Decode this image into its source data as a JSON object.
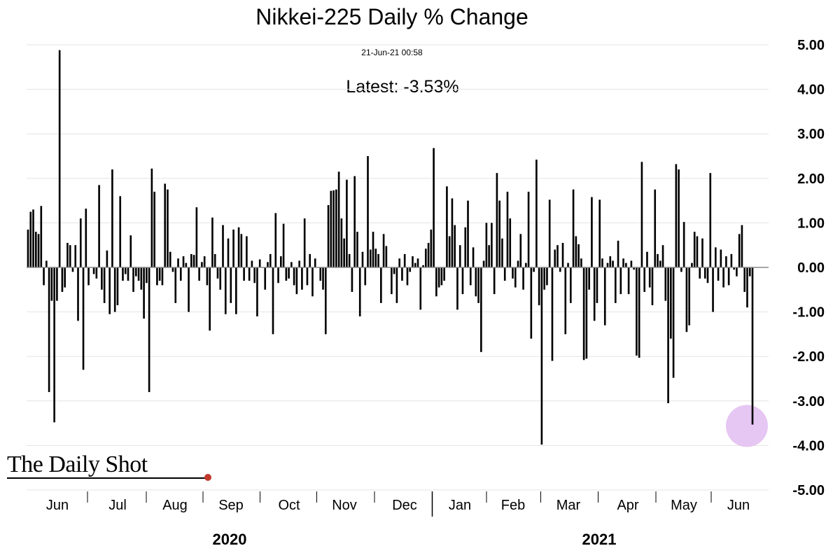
{
  "chart_data": {
    "type": "bar",
    "title": "Nikkei-225 Daily % Change",
    "timestamp": "21-Jun-21 00:58",
    "annotation": "Latest:  -3.53%",
    "source": "The Daily Shot",
    "ylim": [
      -5,
      5
    ],
    "yticks": [
      "5.00",
      "4.00",
      "3.00",
      "2.00",
      "1.00",
      "0.00",
      "-1.00",
      "-2.00",
      "-3.00",
      "-4.00",
      "-5.00"
    ],
    "months": [
      "Jun",
      "Jul",
      "Aug",
      "Sep",
      "Oct",
      "Nov",
      "Dec",
      "Jan",
      "Feb",
      "Mar",
      "Apr",
      "May",
      "Jun"
    ],
    "years": [
      "2020",
      "2021"
    ],
    "grid": true,
    "highlight_color": "#e6c6f2",
    "values": [
      0.85,
      1.25,
      1.3,
      0.8,
      0.75,
      1.38,
      -0.4,
      0.15,
      -2.8,
      -0.75,
      -3.48,
      -0.75,
      4.88,
      -0.55,
      -0.45,
      0.55,
      0.5,
      -0.1,
      0.5,
      -1.2,
      1.1,
      -2.3,
      1.32,
      -0.4,
      0.0,
      -0.15,
      -0.25,
      1.85,
      -0.5,
      -0.8,
      0.38,
      -1.05,
      2.2,
      -1.0,
      -0.85,
      1.6,
      -0.3,
      -0.15,
      -0.3,
      0.72,
      -0.55,
      -0.2,
      -0.3,
      -0.5,
      -1.15,
      -0.35,
      -2.8,
      2.22,
      1.7,
      -0.4,
      -0.3,
      -0.4,
      1.88,
      1.75,
      0.35,
      -0.1,
      -0.8,
      0.2,
      -0.3,
      0.25,
      0.1,
      -1.0,
      0.3,
      0.28,
      1.35,
      -0.3,
      0.12,
      0.25,
      -0.4,
      -1.42,
      1.12,
      0.3,
      -0.25,
      -0.5,
      0.95,
      -1.05,
      0.65,
      -0.8,
      0.85,
      -1.05,
      0.9,
      0.75,
      -0.3,
      0.7,
      -0.3,
      0.15,
      -0.35,
      -1.1,
      0.18,
      0.0,
      -0.5,
      0.12,
      0.3,
      -1.5,
      1.22,
      -0.35,
      0.25,
      0.98,
      -0.3,
      -0.25,
      0.12,
      -0.4,
      -0.6,
      0.15,
      -0.5,
      1.1,
      -0.4,
      0.3,
      -0.65,
      0.2,
      0.0,
      -0.3,
      -0.5,
      -1.5,
      1.4,
      1.72,
      1.73,
      1.75,
      2.15,
      1.1,
      0.65,
      1.97,
      0.3,
      -0.55,
      2.05,
      0.8,
      -1.1,
      0.35,
      -0.4,
      2.5,
      0.4,
      0.8,
      0.42,
      0.3,
      -0.8,
      0.75,
      0.48,
      0.0,
      -0.6,
      -0.15,
      -0.8,
      0.2,
      -0.3,
      0.3,
      -0.4,
      -0.1,
      0.25,
      0.1,
      0.2,
      -0.95,
      0.05,
      0.42,
      0.55,
      0.85,
      2.68,
      -0.65,
      -0.45,
      -0.4,
      -0.3,
      1.82,
      0.7,
      1.55,
      0.95,
      -0.95,
      0.5,
      -0.6,
      0.9,
      1.5,
      -0.4,
      0.45,
      -0.65,
      -0.8,
      -1.9,
      0.15,
      1.0,
      0.5,
      1.0,
      -0.6,
      2.12,
      1.5,
      0.65,
      -0.3,
      1.7,
      1.1,
      -0.25,
      -0.45,
      0.15,
      0.75,
      -0.5,
      0.1,
      1.7,
      -1.6,
      -0.1,
      2.42,
      -0.85,
      -3.98,
      -0.5,
      -0.4,
      1.52,
      -2.1,
      0.4,
      0.5,
      -0.1,
      0.55,
      -1.5,
      0.1,
      -0.8,
      1.75,
      0.7,
      0.52,
      0.2,
      -2.08,
      -2.05,
      -0.5,
      1.58,
      -1.2,
      -0.8,
      1.52,
      0.2,
      -1.3,
      0.1,
      0.25,
      0.15,
      -0.8,
      0.6,
      -0.6,
      0.2,
      0.1,
      -0.6,
      0.15,
      -0.05,
      -1.98,
      -2.03,
      2.37,
      -0.55,
      0.35,
      -0.45,
      -0.85,
      1.75,
      0.3,
      0.15,
      0.5,
      -0.75,
      -3.05,
      -1.6,
      -2.48,
      2.32,
      2.2,
      -0.1,
      1.02,
      -1.45,
      -1.3,
      0.1,
      0.8,
      0.7,
      -0.25,
      0.65,
      -0.25,
      -0.35,
      2.12,
      -1.0,
      0.45,
      -0.3,
      0.4,
      -0.45,
      0.25,
      -0.4,
      0.3,
      -0.05,
      -0.2,
      0.75,
      0.95,
      -0.55,
      -0.9,
      -0.2,
      -3.53
    ]
  }
}
